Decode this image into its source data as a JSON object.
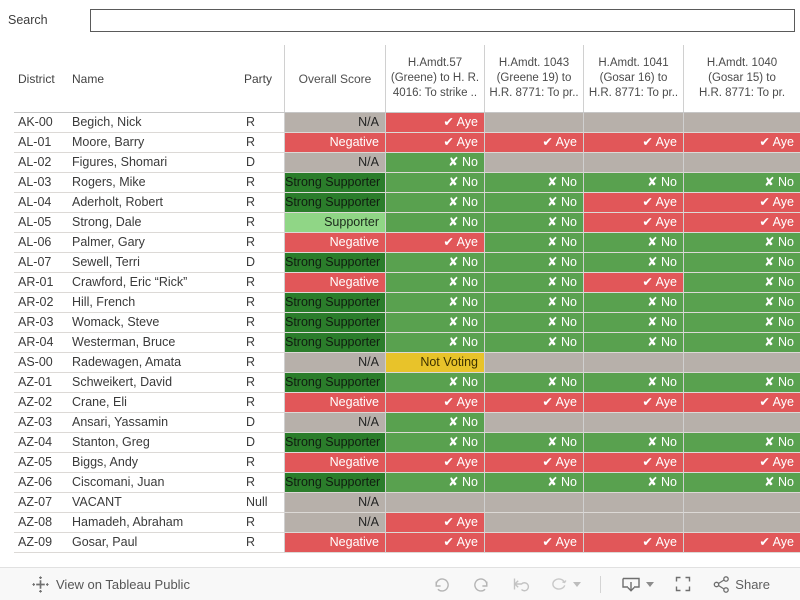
{
  "search": {
    "label": "Search",
    "value": "",
    "placeholder": ""
  },
  "table": {
    "headers": {
      "district": "District",
      "name": "Name",
      "party": "Party",
      "overall_score": "Overall Score",
      "amendments": [
        {
          "lines": [
            "H.Amdt.57",
            "(Greene) to H. R.",
            "4016: To strike .."
          ]
        },
        {
          "lines": [
            "H.Amdt. 1043",
            "(Greene 19) to",
            "H.R. 8771: To pr.."
          ]
        },
        {
          "lines": [
            "H.Amdt. 1041",
            "(Gosar 16) to",
            "H.R. 8771: To pr.."
          ]
        },
        {
          "lines": [
            "H.Amdt. 1040",
            "(Gosar 15) to",
            "H.R. 8771: To pr."
          ]
        }
      ]
    },
    "vote_labels": {
      "aye": "✔ Aye",
      "no": "✘ No",
      "not_voting": "Not Voting",
      "none": ""
    },
    "rows": [
      {
        "district": "AK-00",
        "name": "Begich, Nick",
        "party": "R",
        "score": {
          "label": "N/A",
          "type": "na"
        },
        "votes": [
          "aye",
          "none",
          "none",
          "none"
        ]
      },
      {
        "district": "AL-01",
        "name": "Moore, Barry",
        "party": "R",
        "score": {
          "label": "Negative",
          "type": "negative"
        },
        "votes": [
          "aye",
          "aye",
          "aye",
          "aye"
        ]
      },
      {
        "district": "AL-02",
        "name": "Figures, Shomari",
        "party": "D",
        "score": {
          "label": "N/A",
          "type": "na"
        },
        "votes": [
          "no",
          "none",
          "none",
          "none"
        ]
      },
      {
        "district": "AL-03",
        "name": "Rogers, Mike",
        "party": "R",
        "score": {
          "label": "Strong Supporter",
          "type": "strong_supporter"
        },
        "votes": [
          "no",
          "no",
          "no",
          "no"
        ]
      },
      {
        "district": "AL-04",
        "name": "Aderholt, Robert",
        "party": "R",
        "score": {
          "label": "Strong Supporter",
          "type": "strong_supporter"
        },
        "votes": [
          "no",
          "no",
          "aye",
          "aye"
        ]
      },
      {
        "district": "AL-05",
        "name": "Strong, Dale",
        "party": "R",
        "score": {
          "label": "Supporter",
          "type": "supporter"
        },
        "votes": [
          "no",
          "no",
          "aye",
          "aye"
        ]
      },
      {
        "district": "AL-06",
        "name": "Palmer, Gary",
        "party": "R",
        "score": {
          "label": "Negative",
          "type": "negative"
        },
        "votes": [
          "aye",
          "no",
          "no",
          "no"
        ]
      },
      {
        "district": "AL-07",
        "name": "Sewell, Terri",
        "party": "D",
        "score": {
          "label": "Strong Supporter",
          "type": "strong_supporter"
        },
        "votes": [
          "no",
          "no",
          "no",
          "no"
        ]
      },
      {
        "district": "AR-01",
        "name": "Crawford, Eric “Rick”",
        "party": "R",
        "score": {
          "label": "Negative",
          "type": "negative"
        },
        "votes": [
          "no",
          "no",
          "aye",
          "no"
        ]
      },
      {
        "district": "AR-02",
        "name": "Hill, French",
        "party": "R",
        "score": {
          "label": "Strong Supporter",
          "type": "strong_supporter"
        },
        "votes": [
          "no",
          "no",
          "no",
          "no"
        ]
      },
      {
        "district": "AR-03",
        "name": "Womack, Steve",
        "party": "R",
        "score": {
          "label": "Strong Supporter",
          "type": "strong_supporter"
        },
        "votes": [
          "no",
          "no",
          "no",
          "no"
        ]
      },
      {
        "district": "AR-04",
        "name": "Westerman, Bruce",
        "party": "R",
        "score": {
          "label": "Strong Supporter",
          "type": "strong_supporter"
        },
        "votes": [
          "no",
          "no",
          "no",
          "no"
        ]
      },
      {
        "district": "AS-00",
        "name": "Radewagen, Amata",
        "party": "R",
        "score": {
          "label": "N/A",
          "type": "na"
        },
        "votes": [
          "not_voting",
          "none",
          "none",
          "none"
        ]
      },
      {
        "district": "AZ-01",
        "name": "Schweikert, David",
        "party": "R",
        "score": {
          "label": "Strong Supporter",
          "type": "strong_supporter"
        },
        "votes": [
          "no",
          "no",
          "no",
          "no"
        ]
      },
      {
        "district": "AZ-02",
        "name": "Crane, Eli",
        "party": "R",
        "score": {
          "label": "Negative",
          "type": "negative"
        },
        "votes": [
          "aye",
          "aye",
          "aye",
          "aye"
        ]
      },
      {
        "district": "AZ-03",
        "name": "Ansari, Yassamin",
        "party": "D",
        "score": {
          "label": "N/A",
          "type": "na"
        },
        "votes": [
          "no",
          "none",
          "none",
          "none"
        ]
      },
      {
        "district": "AZ-04",
        "name": "Stanton, Greg",
        "party": "D",
        "score": {
          "label": "Strong Supporter",
          "type": "strong_supporter"
        },
        "votes": [
          "no",
          "no",
          "no",
          "no"
        ]
      },
      {
        "district": "AZ-05",
        "name": "Biggs, Andy",
        "party": "R",
        "score": {
          "label": "Negative",
          "type": "negative"
        },
        "votes": [
          "aye",
          "aye",
          "aye",
          "aye"
        ]
      },
      {
        "district": "AZ-06",
        "name": "Ciscomani, Juan",
        "party": "R",
        "score": {
          "label": "Strong Supporter",
          "type": "strong_supporter"
        },
        "votes": [
          "no",
          "no",
          "no",
          "no"
        ]
      },
      {
        "district": "AZ-07",
        "name": "VACANT",
        "party": "Null",
        "score": {
          "label": "N/A",
          "type": "na"
        },
        "votes": [
          "none",
          "none",
          "none",
          "none"
        ]
      },
      {
        "district": "AZ-08",
        "name": "Hamadeh, Abraham",
        "party": "R",
        "score": {
          "label": "N/A",
          "type": "na"
        },
        "votes": [
          "aye",
          "none",
          "none",
          "none"
        ]
      },
      {
        "district": "AZ-09",
        "name": "Gosar, Paul",
        "party": "R",
        "score": {
          "label": "Negative",
          "type": "negative"
        },
        "votes": [
          "aye",
          "aye",
          "aye",
          "aye"
        ]
      }
    ]
  },
  "footer": {
    "view_on_tableau": "View on Tableau Public",
    "share_label": "Share",
    "icons": [
      "tableau-logo",
      "undo",
      "redo",
      "revert",
      "refresh",
      "dropdown-caret",
      "download",
      "dropdown-caret",
      "fullscreen",
      "share"
    ]
  },
  "colors": {
    "aye": "#e15759",
    "no": "#59a14f",
    "negative": "#e15759",
    "strong_supporter": "#2b7d2b",
    "supporter": "#90d686",
    "na": "#b7b0aa",
    "not_voting": "#e8c32a"
  }
}
